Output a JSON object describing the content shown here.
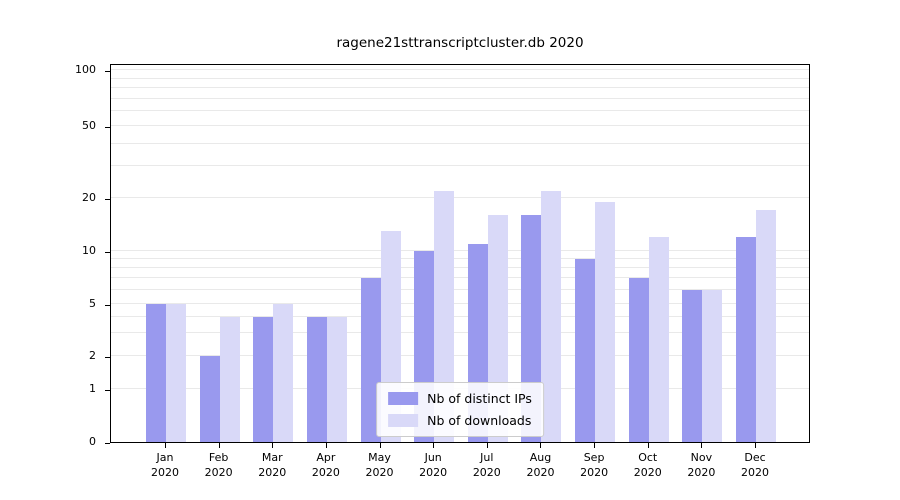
{
  "chart_data": {
    "type": "bar",
    "title": "ragene21sttranscriptcluster.db 2020",
    "categories": [
      "Jan 2020",
      "Feb 2020",
      "Mar 2020",
      "Apr 2020",
      "May 2020",
      "Jun 2020",
      "Jul 2020",
      "Aug 2020",
      "Sep 2020",
      "Oct 2020",
      "Nov 2020",
      "Dec 2020"
    ],
    "x_tick_top": [
      "Jan",
      "Feb",
      "Mar",
      "Apr",
      "May",
      "Jun",
      "Jul",
      "Aug",
      "Sep",
      "Oct",
      "Nov",
      "Dec"
    ],
    "x_tick_bottom": "2020",
    "series": [
      {
        "name": "Nb of distinct IPs",
        "color": "#9999ee",
        "values": [
          5,
          2,
          4,
          4,
          7,
          10,
          11,
          16,
          9,
          7,
          6,
          12
        ]
      },
      {
        "name": "Nb of downloads",
        "color": "#d9d9f8",
        "values": [
          5,
          4,
          5,
          4,
          13,
          22,
          16,
          22,
          19,
          12,
          6,
          17
        ]
      }
    ],
    "y_ticks": [
      0,
      1,
      2,
      5,
      10,
      20,
      50,
      100
    ],
    "y_gridlines": [
      1,
      2,
      3,
      4,
      5,
      6,
      7,
      8,
      9,
      10,
      20,
      30,
      40,
      50,
      60,
      70,
      80,
      90,
      100
    ],
    "ylim": [
      0,
      100
    ],
    "y_scale": "log-like",
    "y_scale_anchors": [
      [
        0,
        0
      ],
      [
        1,
        0.1398
      ],
      [
        2,
        0.2269
      ],
      [
        5,
        0.3641
      ],
      [
        10,
        0.504
      ],
      [
        20,
        0.6438
      ],
      [
        50,
        0.8338
      ],
      [
        100,
        0.9815
      ]
    ],
    "grid": true,
    "legend_position": "lower center",
    "background": "#ffffff",
    "gridline_color": "#e9e9e9"
  }
}
